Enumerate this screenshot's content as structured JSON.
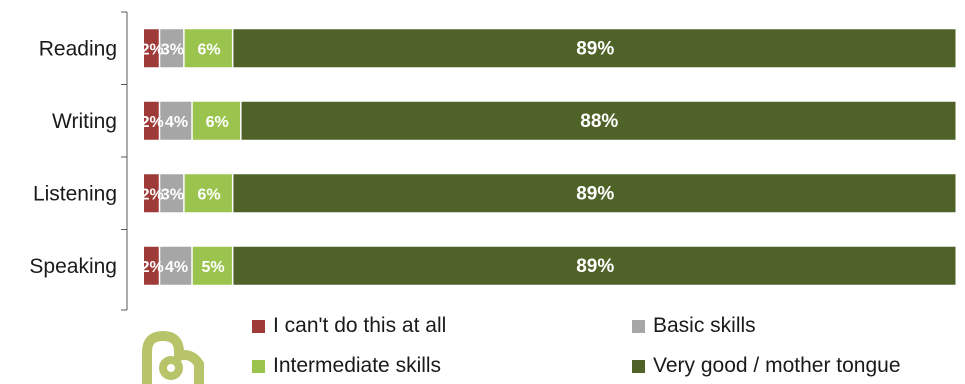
{
  "chart_data": {
    "type": "bar",
    "orientation": "horizontal",
    "stacked": true,
    "categories": [
      "Reading",
      "Writing",
      "Listening",
      "Speaking"
    ],
    "series": [
      {
        "name": "I can't do this at all",
        "color": "#9e3b38",
        "values": [
          2,
          2,
          2,
          2
        ],
        "labels": [
          "2%",
          "2%",
          "2%",
          "2%"
        ]
      },
      {
        "name": "Basic skills",
        "color": "#a6a6a6",
        "values": [
          3,
          4,
          3,
          4
        ],
        "labels": [
          "3%",
          "4%",
          "3%",
          "4%"
        ]
      },
      {
        "name": "Intermediate skills",
        "color": "#9bc44f",
        "values": [
          6,
          6,
          6,
          5
        ],
        "labels": [
          "6%",
          "6%",
          "6%",
          "5%"
        ]
      },
      {
        "name": "Very good / mother tongue",
        "color": "#4f6228",
        "values": [
          89,
          88,
          89,
          89
        ],
        "labels": [
          "89%",
          "88%",
          "89%",
          "89%"
        ]
      }
    ],
    "xlim": [
      0,
      100
    ],
    "grid": false,
    "legend_position": "bottom"
  },
  "legend_icon": "ecl-logo-icon"
}
